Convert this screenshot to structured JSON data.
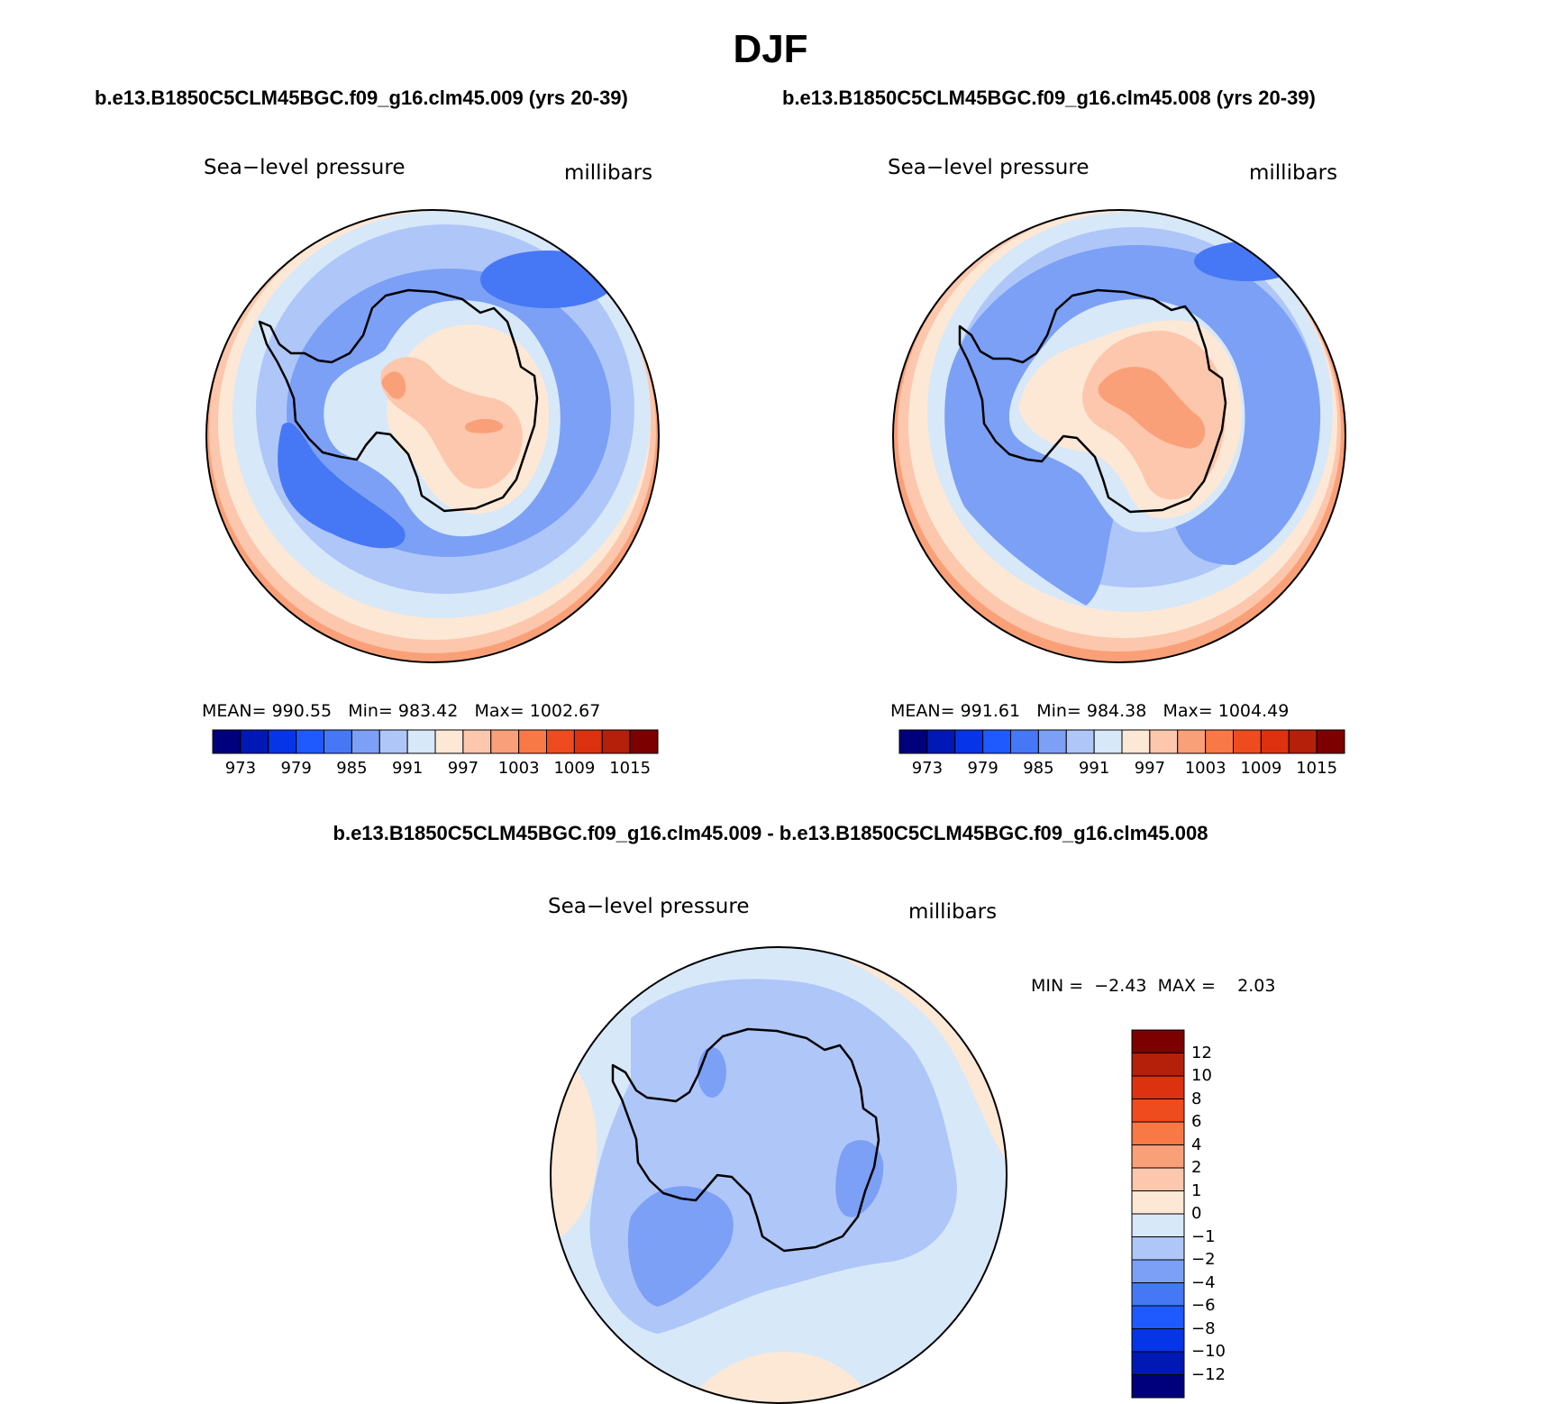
{
  "figure_title": "DJF",
  "panel_left": {
    "case_title": "b.e13.B1850C5CLM45BGC.f09_g16.clm45.009 (yrs 20-39)",
    "variable": "Sea−level pressure",
    "units": "millibars",
    "stats": {
      "mean_label": "MEAN=",
      "mean": "990.55",
      "min_label": "Min=",
      "min": "983.42",
      "max_label": "Max=",
      "max": "1002.67"
    }
  },
  "panel_right": {
    "case_title": "b.e13.B1850C5CLM45BGC.f09_g16.clm45.008 (yrs 20-39)",
    "variable": "Sea−level pressure",
    "units": "millibars",
    "stats": {
      "mean_label": "MEAN=",
      "mean": "991.61",
      "min_label": "Min=",
      "min": "984.38",
      "max_label": "Max=",
      "max": "1004.49"
    }
  },
  "panel_diff": {
    "title": "b.e13.B1850C5CLM45BGC.f09_g16.clm45.009 - b.e13.B1850C5CLM45BGC.f09_g16.clm45.008",
    "variable": "Sea−level pressure",
    "units": "millibars",
    "min_label": "MIN =",
    "min": "−2.43",
    "max_label": "MAX =",
    "max": "2.03"
  },
  "colorbar_abs": {
    "colors": [
      "#00007d",
      "#0019b4",
      "#0535e6",
      "#1e5aff",
      "#4678f5",
      "#7ba0f5",
      "#afc6f8",
      "#d7e8f8",
      "#fde8d6",
      "#fcc7ac",
      "#faa078",
      "#f87846",
      "#ee4b1e",
      "#dc320f",
      "#b4200a",
      "#7d0000"
    ],
    "tick_labels": [
      "973",
      "979",
      "985",
      "991",
      "997",
      "1003",
      "1009",
      "1015"
    ]
  },
  "colorbar_diff": {
    "colors_top_to_bottom": [
      "#7d0000",
      "#b4200a",
      "#dc320f",
      "#ee4b1e",
      "#f87846",
      "#faa078",
      "#fcc7ac",
      "#fde8d6",
      "#d7e8f8",
      "#afc6f8",
      "#7ba0f5",
      "#4678f5",
      "#1e5aff",
      "#0535e6",
      "#0019b4",
      "#00007d"
    ],
    "tick_labels": [
      "12",
      "10",
      "8",
      "6",
      "4",
      "2",
      "1",
      "0",
      "−1",
      "−2",
      "−4",
      "−6",
      "−8",
      "−10",
      "−12"
    ]
  },
  "map_colors": {
    "c_1000": "#fcc7ac",
    "c_997": "#fde8d6",
    "c_994": "#d7e8f8",
    "c_991": "#afc6f8",
    "c_988": "#7ba0f5",
    "c_985": "#4678f5",
    "c_1003": "#faa078",
    "d_pos1": "#fde8d6",
    "d_pos2": "#fcc7ac",
    "d_0": "#d7e8f8",
    "d_m1": "#afc6f8",
    "d_m2": "#7ba0f5"
  }
}
